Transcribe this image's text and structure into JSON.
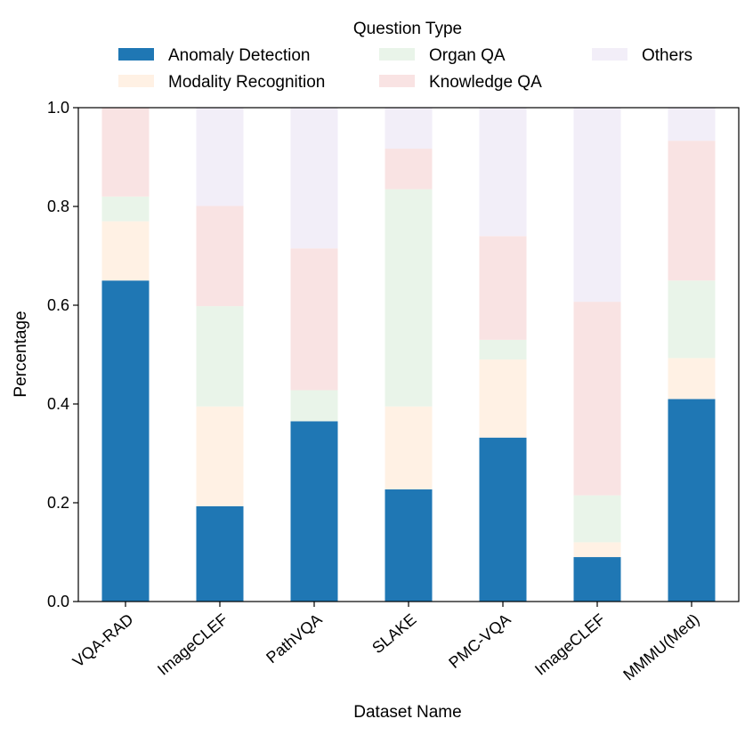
{
  "chart_data": {
    "type": "bar",
    "stacked": true,
    "categories": [
      "VQA-RAD",
      "ImageCLEF",
      "PathVQA",
      "SLAKE",
      "PMC-VQA",
      "ImageCLEF",
      "MMMU(Med)"
    ],
    "series": [
      {
        "name": "Anomaly Detection",
        "color": "#1f77b4",
        "values": [
          0.65,
          0.193,
          0.365,
          0.227,
          0.332,
          0.09,
          0.41
        ]
      },
      {
        "name": "Modality Recognition",
        "color": "#fff1e4",
        "values": [
          0.12,
          0.202,
          0.0,
          0.168,
          0.158,
          0.03,
          0.083
        ]
      },
      {
        "name": "Organ QA",
        "color": "#e9f4e9",
        "values": [
          0.05,
          0.203,
          0.063,
          0.44,
          0.04,
          0.095,
          0.157
        ]
      },
      {
        "name": "Knowledge QA",
        "color": "#f9e3e3",
        "values": [
          0.18,
          0.203,
          0.287,
          0.082,
          0.21,
          0.392,
          0.283
        ]
      },
      {
        "name": "Others",
        "color": "#f2eef8",
        "values": [
          0.0,
          0.199,
          0.285,
          0.083,
          0.26,
          0.393,
          0.067
        ]
      }
    ],
    "legend_title": "Question Type",
    "legend_position": "top",
    "xlabel": "Dataset Name",
    "ylabel": "Percentage",
    "ylim": [
      0,
      1.0
    ],
    "yticks": [
      "0.0",
      "0.2",
      "0.4",
      "0.6",
      "0.8",
      "1.0"
    ],
    "grid": false
  }
}
